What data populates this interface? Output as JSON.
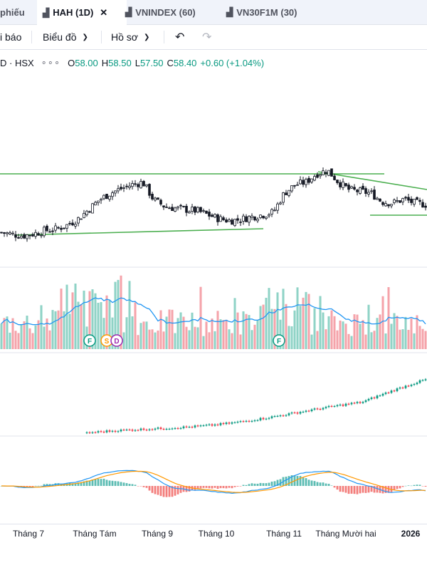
{
  "tabs": [
    {
      "label": "phiếu",
      "icon": "",
      "active": false
    },
    {
      "label": "HAH (1D)",
      "icon": "chart-icon",
      "active": true
    },
    {
      "label": "VNINDEX (60)",
      "icon": "chart-icon",
      "active": false
    },
    {
      "label": "VN30F1M (30)",
      "icon": "chart-icon",
      "active": false
    }
  ],
  "toolbar": {
    "alerts_label": "i báo",
    "charts_label": "Biểu đồ",
    "profile_label": "Hồ sơ",
    "undo_icon": "undo-icon",
    "redo_icon": "redo-icon"
  },
  "legend": {
    "symbol": "D · HSX",
    "more": "∘∘∘",
    "o_key": "O",
    "o_val": "58.00",
    "h_key": "H",
    "h_val": "58.50",
    "l_key": "L",
    "l_val": "57.50",
    "c_key": "C",
    "c_val": "58.40",
    "change": "+0.60 (+1.04%)"
  },
  "colors": {
    "up": "#089981",
    "down": "#f23645",
    "trend": "#4caf50",
    "vol_ma": "#2196f3",
    "signal": "#ff9800"
  },
  "markers": [
    "F",
    "S",
    "D",
    "F"
  ],
  "xaxis": {
    "labels": [
      "Tháng 7",
      "Tháng Tám",
      "Tháng 9",
      "Tháng 10",
      "Tháng 11",
      "Tháng Mười hai",
      "2026"
    ]
  },
  "chart_data": {
    "type": "candlestick",
    "series": [
      {
        "name": "HAH",
        "last": {
          "open": 58.0,
          "high": 58.5,
          "low": 57.5,
          "close": 58.4,
          "change": 0.6,
          "change_pct": 1.04
        }
      }
    ],
    "price_path": [
      50.5,
      50.2,
      50.0,
      50.3,
      50.8,
      51.0,
      51.6,
      52.5,
      54.0,
      55.5,
      56.5,
      57.2,
      57.8,
      58.2,
      55.5,
      54.5,
      54.2,
      54.0,
      53.8,
      53.2,
      52.6,
      52.3,
      52.5,
      52.9,
      53.2,
      53.6,
      56.5,
      57.8,
      58.2,
      59.5,
      60.0,
      58.2,
      57.0,
      56.8,
      56.5,
      55.2,
      55.0,
      55.6,
      55.0,
      54.8
    ]
  }
}
